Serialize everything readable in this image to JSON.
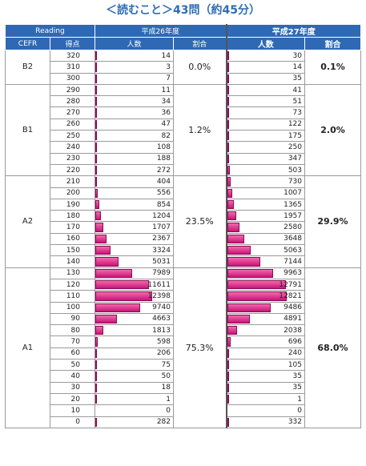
{
  "title": "＜読むこと＞43問（約45分）",
  "header": {
    "row1": {
      "reading": "Reading",
      "h26": "平成26年度",
      "h27": "平成27年度"
    },
    "row2": {
      "cefr": "CEFR",
      "score": "得点",
      "count": "人数",
      "ratio": "割合",
      "count27": "人数",
      "ratio27": "割合"
    }
  },
  "bands": [
    {
      "cefr": "B2",
      "ratio26": "0.0%",
      "ratio27": "0.1%",
      "rows": [
        {
          "score": "320",
          "c26": 14,
          "c27": 30
        },
        {
          "score": "310",
          "c26": 3,
          "c27": 14
        },
        {
          "score": "300",
          "c26": 7,
          "c27": 35
        }
      ]
    },
    {
      "cefr": "B1",
      "ratio26": "1.2%",
      "ratio27": "2.0%",
      "rows": [
        {
          "score": "290",
          "c26": 11,
          "c27": 41
        },
        {
          "score": "280",
          "c26": 34,
          "c27": 51
        },
        {
          "score": "270",
          "c26": 36,
          "c27": 73
        },
        {
          "score": "260",
          "c26": 47,
          "c27": 122
        },
        {
          "score": "250",
          "c26": 82,
          "c27": 175
        },
        {
          "score": "240",
          "c26": 108,
          "c27": 250
        },
        {
          "score": "230",
          "c26": 188,
          "c27": 347
        },
        {
          "score": "220",
          "c26": 272,
          "c27": 503
        }
      ]
    },
    {
      "cefr": "A2",
      "ratio26": "23.5%",
      "ratio27": "29.9%",
      "rows": [
        {
          "score": "210",
          "c26": 404,
          "c27": 730
        },
        {
          "score": "200",
          "c26": 556,
          "c27": 1007
        },
        {
          "score": "190",
          "c26": 854,
          "c27": 1365
        },
        {
          "score": "180",
          "c26": 1204,
          "c27": 1957
        },
        {
          "score": "170",
          "c26": 1707,
          "c27": 2580
        },
        {
          "score": "160",
          "c26": 2367,
          "c27": 3648
        },
        {
          "score": "150",
          "c26": 3324,
          "c27": 5063
        },
        {
          "score": "140",
          "c26": 5031,
          "c27": 7144
        }
      ]
    },
    {
      "cefr": "A1",
      "ratio26": "75.3%",
      "ratio27": "68.0%",
      "rows": [
        {
          "score": "130",
          "c26": 7989,
          "c27": 9963
        },
        {
          "score": "120",
          "c26": 11611,
          "c27": 12791
        },
        {
          "score": "110",
          "c26": 12398,
          "c27": 12821
        },
        {
          "score": "100",
          "c26": 9740,
          "c27": 9486
        },
        {
          "score": "90",
          "c26": 4663,
          "c27": 4891
        },
        {
          "score": "80",
          "c26": 1813,
          "c27": 2038
        },
        {
          "score": "70",
          "c26": 598,
          "c27": 696
        },
        {
          "score": "60",
          "c26": 206,
          "c27": 240
        },
        {
          "score": "50",
          "c26": 75,
          "c27": 105
        },
        {
          "score": "40",
          "c26": 50,
          "c27": 35
        },
        {
          "score": "30",
          "c26": 18,
          "c27": 35
        },
        {
          "score": "20",
          "c26": 1,
          "c27": 1
        },
        {
          "score": "10",
          "c26": 0,
          "c27": 0
        },
        {
          "score": "0",
          "c26": 282,
          "c27": 332
        }
      ]
    }
  ],
  "bar_max": 12821,
  "colors": {
    "header": "#2f69b4",
    "title": "#2e6db4",
    "bar": "#d3167f"
  }
}
